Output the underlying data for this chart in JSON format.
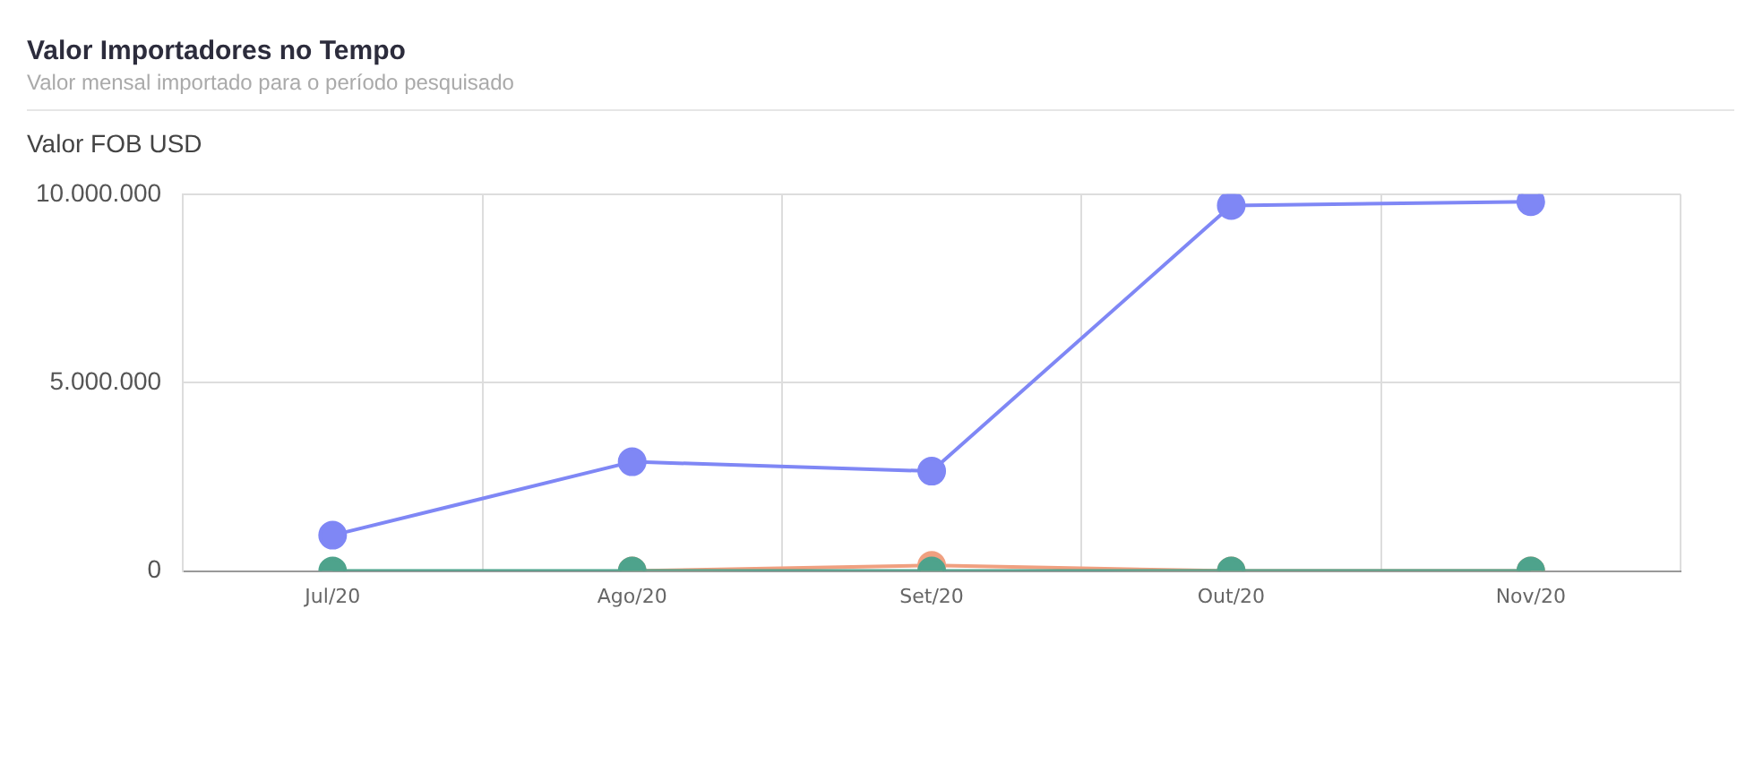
{
  "chart_data": {
    "type": "line",
    "title": "Valor Importadores no Tempo",
    "subtitle": "Valor mensal importado para o período pesquisado",
    "ylabel": "Valor FOB USD",
    "categories": [
      "Jul/20",
      "Ago/20",
      "Set/20",
      "Out/20",
      "Nov/20"
    ],
    "series": [
      {
        "color": "#7f87f5",
        "values": [
          950000,
          2900000,
          2650000,
          9700000,
          9800000
        ]
      },
      {
        "color": "#f0a080",
        "values": [
          null,
          0,
          150000,
          0,
          0
        ]
      },
      {
        "color": "#4ea38c",
        "values": [
          0,
          0,
          0,
          0,
          0
        ]
      }
    ],
    "ylim": [
      0,
      10000000
    ],
    "yticks": [
      {
        "value": 0,
        "label": "0"
      },
      {
        "value": 5000000,
        "label": "5.000.000"
      },
      {
        "value": 10000000,
        "label": "10.000.000"
      }
    ],
    "grid": true,
    "legend": false,
    "marker": "circle",
    "line_style": "solid"
  }
}
